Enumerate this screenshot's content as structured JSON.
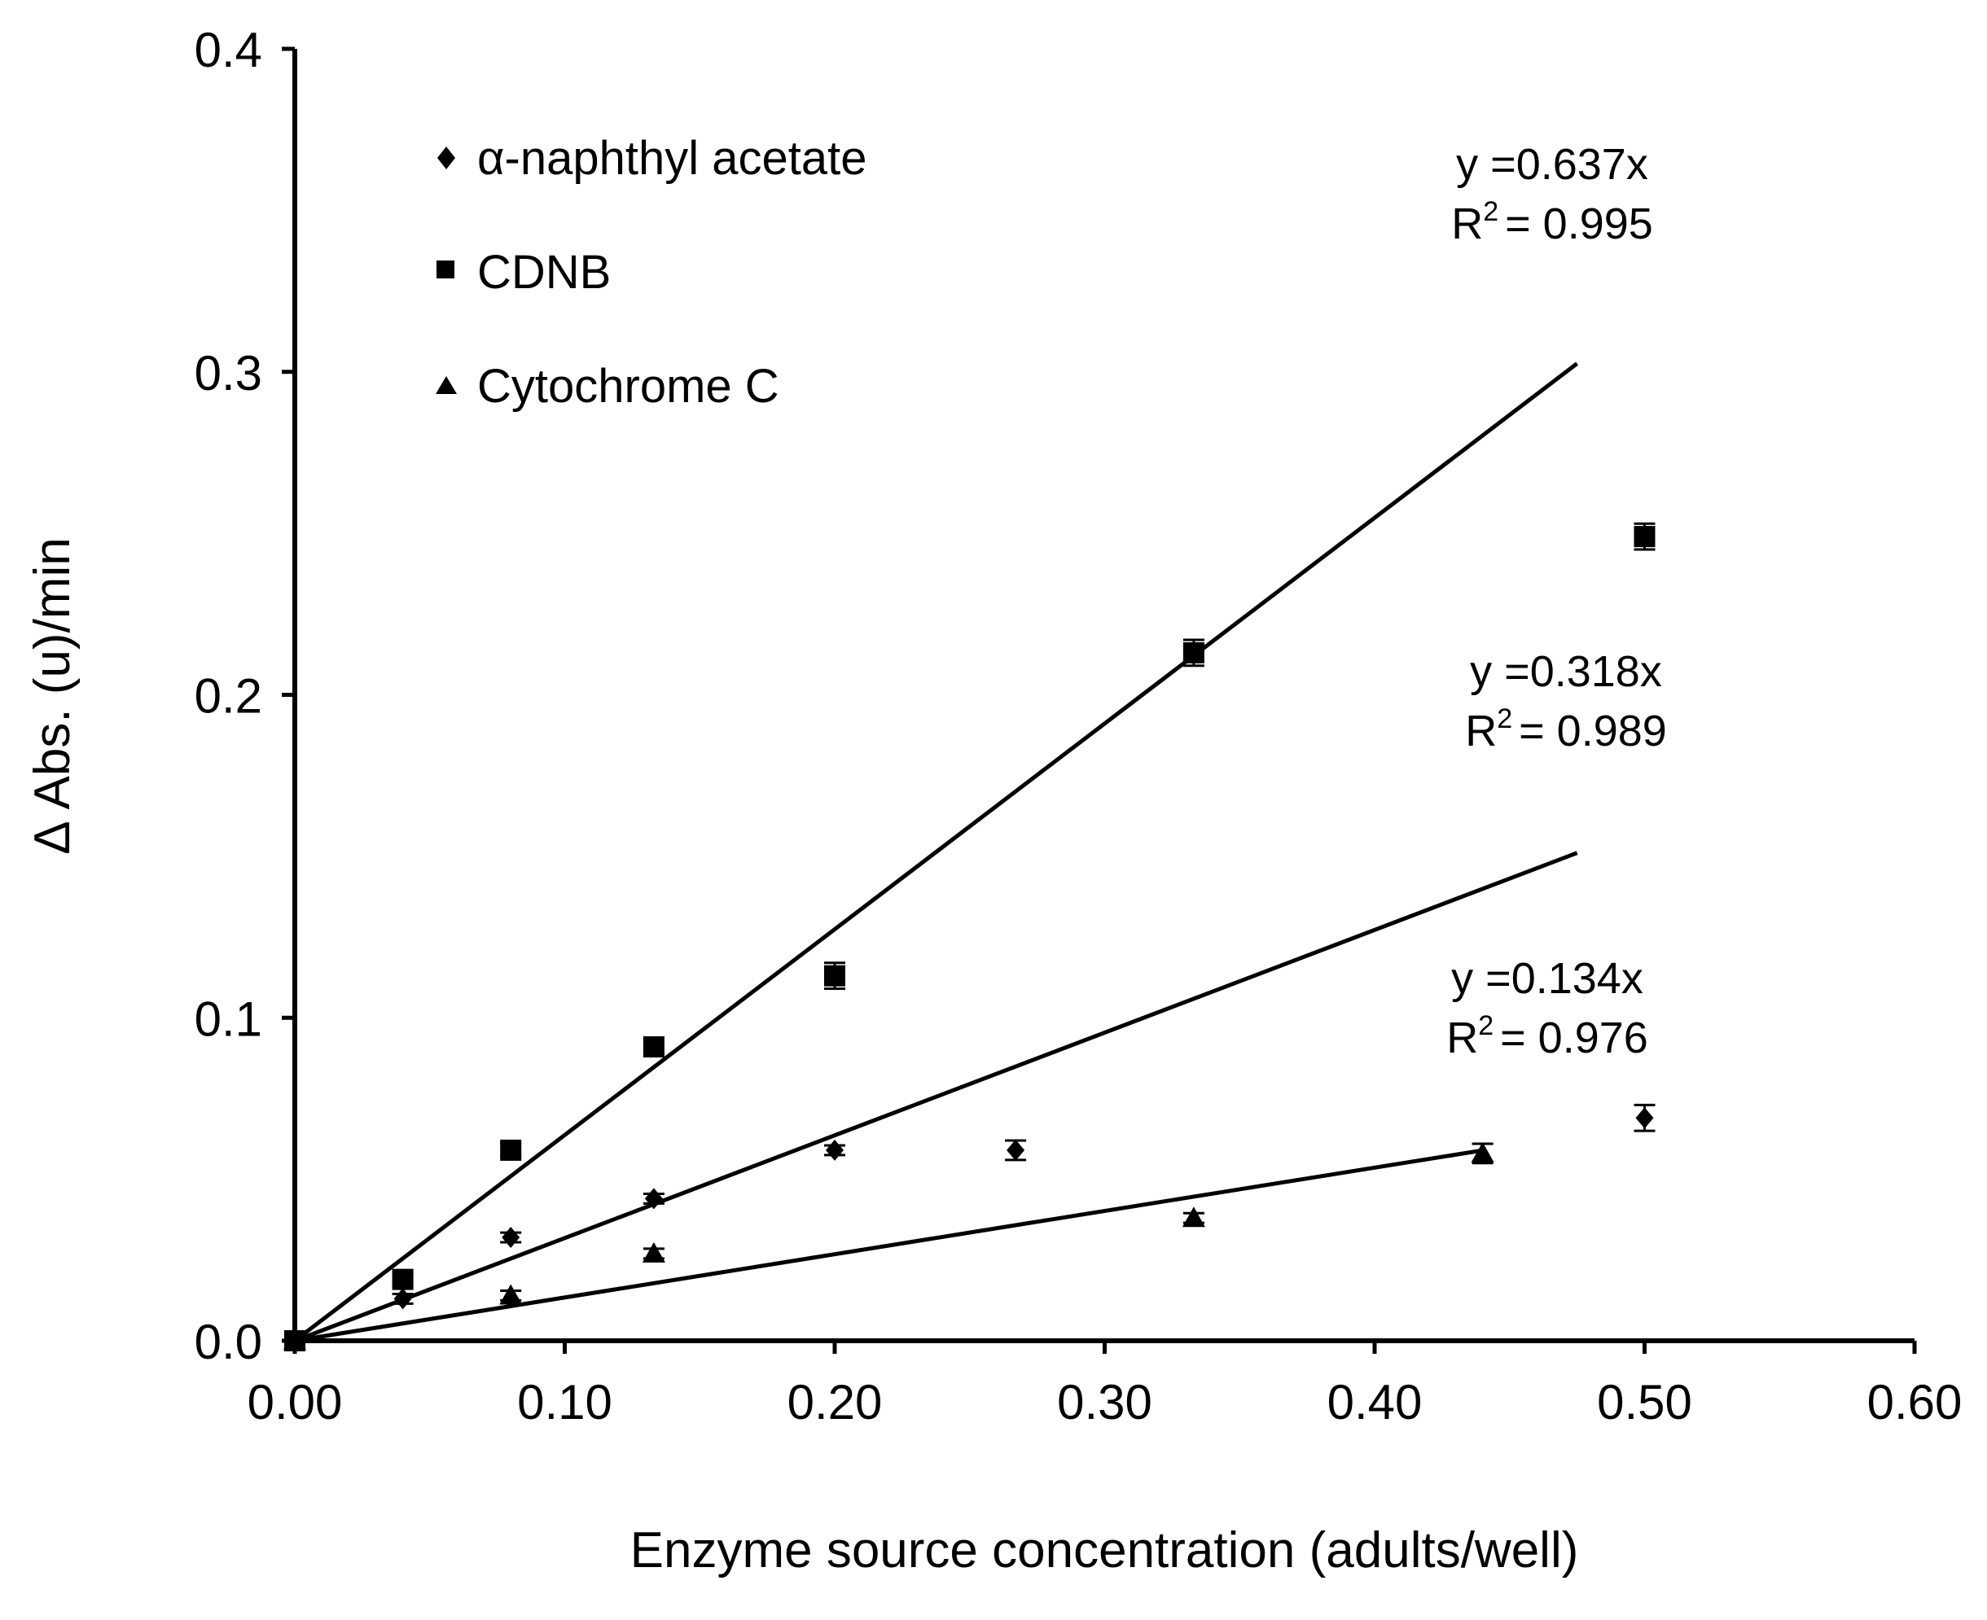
{
  "chart_data": {
    "type": "scatter",
    "title": "",
    "xlabel": "Enzyme source concentration (adults/well)",
    "ylabel": "Δ Abs. (u)/min",
    "xlim": [
      0.0,
      0.6
    ],
    "ylim": [
      0.0,
      0.4
    ],
    "x_ticks": [
      "0.00",
      "0.10",
      "0.20",
      "0.30",
      "0.40",
      "0.50",
      "0.60"
    ],
    "y_ticks": [
      "0.0",
      "0.1",
      "0.2",
      "0.3",
      "0.4"
    ],
    "grid": false,
    "legend_position": "top-left",
    "series": [
      {
        "name": "α-naphthyl acetate",
        "marker": "diamond",
        "points": [
          {
            "x": 0.0,
            "y": 0.0,
            "err": 0.0
          },
          {
            "x": 0.04,
            "y": 0.013,
            "err": 0.0015
          },
          {
            "x": 0.08,
            "y": 0.032,
            "err": 0.0015
          },
          {
            "x": 0.133,
            "y": 0.044,
            "err": 0.0015
          },
          {
            "x": 0.2,
            "y": 0.059,
            "err": 0.0015
          },
          {
            "x": 0.267,
            "y": 0.059,
            "err": 0.003
          },
          {
            "x": 0.5,
            "y": 0.069,
            "err": 0.004
          }
        ],
        "fit": {
          "slope": 0.318,
          "x_end": 0.475,
          "label": "y =0.318x",
          "r2_label": "R",
          "r2_value": "= 0.989"
        }
      },
      {
        "name": "CDNB",
        "marker": "square",
        "points": [
          {
            "x": 0.0,
            "y": 0.0,
            "err": 0.0
          },
          {
            "x": 0.04,
            "y": 0.019,
            "err": 0.002
          },
          {
            "x": 0.08,
            "y": 0.059,
            "err": 0.002
          },
          {
            "x": 0.133,
            "y": 0.091,
            "err": 0.002
          },
          {
            "x": 0.2,
            "y": 0.113,
            "err": 0.004
          },
          {
            "x": 0.333,
            "y": 0.213,
            "err": 0.004
          },
          {
            "x": 0.5,
            "y": 0.249,
            "err": 0.004
          }
        ],
        "fit": {
          "slope": 0.637,
          "x_end": 0.475,
          "label": "y =0.637x",
          "r2_label": "R",
          "r2_value": "= 0.995"
        }
      },
      {
        "name": "Cytochrome C",
        "marker": "triangle",
        "points": [
          {
            "x": 0.0,
            "y": 0.0,
            "err": 0.0
          },
          {
            "x": 0.08,
            "y": 0.014,
            "err": 0.0015
          },
          {
            "x": 0.133,
            "y": 0.027,
            "err": 0.0015
          },
          {
            "x": 0.333,
            "y": 0.038,
            "err": 0.0015
          },
          {
            "x": 0.44,
            "y": 0.058,
            "err": 0.003
          }
        ],
        "fit": {
          "slope": 0.134,
          "x_end": 0.44,
          "label": "y =0.134x",
          "r2_label": "R",
          "r2_value": "= 0.976"
        }
      }
    ],
    "annotations_order": [
      "CDNB",
      "α-naphthyl acetate",
      "Cytochrome C"
    ],
    "superscript": "2"
  },
  "colors": {
    "ink": "#000000",
    "background": "#ffffff"
  }
}
